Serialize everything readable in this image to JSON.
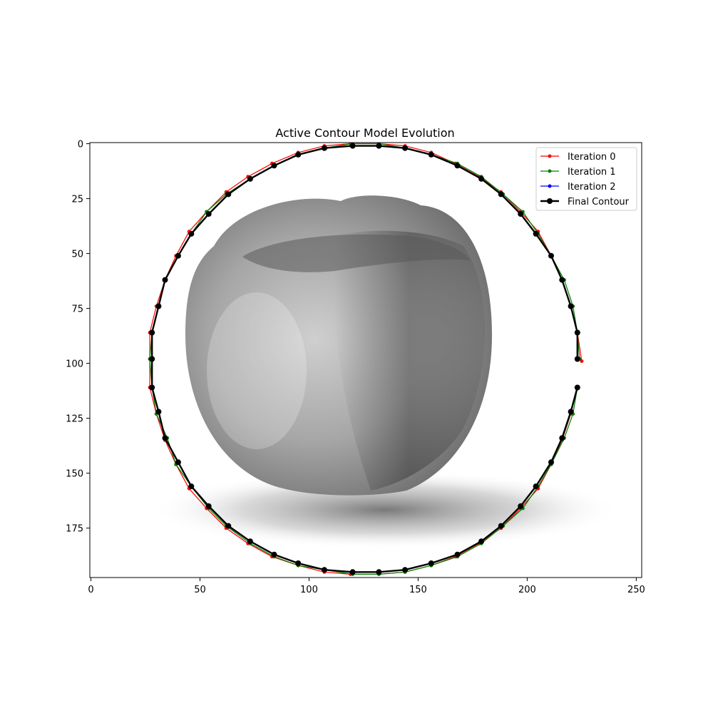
{
  "chart_data": {
    "type": "line",
    "title": "Active Contour Model Evolution",
    "xlabel": "",
    "ylabel": "",
    "xlim": [
      -0.5,
      252.5
    ],
    "ylim": [
      197.5,
      -0.5
    ],
    "y_inverted": true,
    "x_ticks": [
      0,
      50,
      100,
      150,
      200,
      250
    ],
    "y_ticks": [
      0,
      25,
      50,
      75,
      100,
      125,
      150,
      175
    ],
    "grid": false,
    "legend_position": "top-right",
    "background_image": "grayscale apple photo",
    "series": [
      {
        "name": "Iteration 0",
        "color": "#ff0000",
        "marker_size": 2.5,
        "line_width": 1.2,
        "points": [
          [
            225,
            99
          ],
          [
            223,
            86
          ],
          [
            220,
            74
          ],
          [
            216,
            62
          ],
          [
            211,
            51
          ],
          [
            205,
            40
          ],
          [
            197,
            31
          ],
          [
            188,
            22
          ],
          [
            178,
            15
          ],
          [
            167,
            9
          ],
          [
            156,
            4
          ],
          [
            144,
            1
          ],
          [
            132,
            0
          ],
          [
            119,
            0
          ],
          [
            107,
            1
          ],
          [
            95,
            4
          ],
          [
            83,
            9
          ],
          [
            72,
            15
          ],
          [
            62,
            22
          ],
          [
            53,
            31
          ],
          [
            45,
            40
          ],
          [
            39,
            51
          ],
          [
            34,
            62
          ],
          [
            30,
            74
          ],
          [
            27,
            86
          ],
          [
            27,
            98
          ],
          [
            27,
            111
          ],
          [
            30,
            123
          ],
          [
            34,
            135
          ],
          [
            39,
            146
          ],
          [
            45,
            157
          ],
          [
            53,
            166
          ],
          [
            62,
            175
          ],
          [
            72,
            182
          ],
          [
            83,
            188
          ],
          [
            95,
            192
          ],
          [
            107,
            195
          ],
          [
            119,
            196
          ],
          [
            132,
            196
          ],
          [
            144,
            195
          ],
          [
            156,
            192
          ],
          [
            167,
            188
          ],
          [
            178,
            182
          ],
          [
            188,
            175
          ],
          [
            197,
            166
          ],
          [
            205,
            157
          ],
          [
            211,
            146
          ],
          [
            216,
            135
          ],
          [
            220,
            123
          ],
          [
            223,
            111
          ]
        ]
      },
      {
        "name": "Iteration 1",
        "color": "#008000",
        "marker_size": 2.5,
        "line_width": 1.2,
        "points": [
          [
            224,
            98
          ],
          [
            223,
            86
          ],
          [
            221,
            74
          ],
          [
            217,
            62
          ],
          [
            211,
            51
          ],
          [
            205,
            41
          ],
          [
            198,
            31
          ],
          [
            189,
            23
          ],
          [
            179,
            15
          ],
          [
            168,
            9
          ],
          [
            156,
            5
          ],
          [
            144,
            2
          ],
          [
            132,
            0
          ],
          [
            120,
            0
          ],
          [
            107,
            2
          ],
          [
            95,
            5
          ],
          [
            84,
            10
          ],
          [
            73,
            16
          ],
          [
            62,
            23
          ],
          [
            53,
            31
          ],
          [
            46,
            41
          ],
          [
            40,
            51
          ],
          [
            34,
            62
          ],
          [
            31,
            74
          ],
          [
            28,
            86
          ],
          [
            27,
            98
          ],
          [
            28,
            111
          ],
          [
            30,
            123
          ],
          [
            35,
            134
          ],
          [
            39,
            146
          ],
          [
            46,
            156
          ],
          [
            54,
            166
          ],
          [
            62,
            174
          ],
          [
            73,
            182
          ],
          [
            84,
            188
          ],
          [
            95,
            192
          ],
          [
            107,
            194
          ],
          [
            120,
            196
          ],
          [
            132,
            196
          ],
          [
            144,
            195
          ],
          [
            156,
            192
          ],
          [
            168,
            188
          ],
          [
            179,
            182
          ],
          [
            189,
            174
          ],
          [
            198,
            166
          ],
          [
            205,
            156
          ],
          [
            211,
            146
          ],
          [
            217,
            134
          ],
          [
            221,
            123
          ],
          [
            223,
            111
          ]
        ]
      },
      {
        "name": "Iteration 2",
        "color": "#0000ff",
        "marker_size": 2.5,
        "line_width": 1.2,
        "points": [
          [
            223,
            98
          ],
          [
            223,
            86
          ],
          [
            220,
            74
          ],
          [
            216,
            62
          ],
          [
            211,
            51
          ],
          [
            204,
            41
          ],
          [
            197,
            32
          ],
          [
            188,
            23
          ],
          [
            179,
            16
          ],
          [
            168,
            10
          ],
          [
            156,
            5
          ],
          [
            144,
            2
          ],
          [
            132,
            1
          ],
          [
            120,
            1
          ],
          [
            107,
            2
          ],
          [
            95,
            5
          ],
          [
            84,
            10
          ],
          [
            73,
            16
          ],
          [
            63,
            23
          ],
          [
            54,
            32
          ],
          [
            46,
            41
          ],
          [
            40,
            51
          ],
          [
            34,
            62
          ],
          [
            31,
            74
          ],
          [
            28,
            86
          ],
          [
            28,
            98
          ],
          [
            28,
            111
          ],
          [
            31,
            122
          ],
          [
            34,
            134
          ],
          [
            40,
            145
          ],
          [
            46,
            156
          ],
          [
            54,
            165
          ],
          [
            63,
            174
          ],
          [
            73,
            181
          ],
          [
            84,
            187
          ],
          [
            95,
            191
          ],
          [
            107,
            194
          ],
          [
            120,
            195
          ],
          [
            132,
            195
          ],
          [
            144,
            194
          ],
          [
            156,
            191
          ],
          [
            168,
            187
          ],
          [
            179,
            181
          ],
          [
            188,
            174
          ],
          [
            197,
            165
          ],
          [
            204,
            156
          ],
          [
            211,
            145
          ],
          [
            216,
            134
          ],
          [
            220,
            122
          ],
          [
            223,
            111
          ]
        ]
      },
      {
        "name": "Final Contour",
        "color": "#000000",
        "marker_size": 4,
        "line_width": 2.4,
        "points": [
          [
            223,
            98
          ],
          [
            223,
            86
          ],
          [
            220,
            74
          ],
          [
            216,
            62
          ],
          [
            211,
            51
          ],
          [
            204,
            41
          ],
          [
            197,
            32
          ],
          [
            188,
            23
          ],
          [
            179,
            16
          ],
          [
            168,
            10
          ],
          [
            156,
            5
          ],
          [
            144,
            2
          ],
          [
            132,
            1
          ],
          [
            120,
            1
          ],
          [
            107,
            2
          ],
          [
            95,
            5
          ],
          [
            84,
            10
          ],
          [
            73,
            16
          ],
          [
            63,
            23
          ],
          [
            54,
            32
          ],
          [
            46,
            41
          ],
          [
            40,
            51
          ],
          [
            34,
            62
          ],
          [
            31,
            74
          ],
          [
            28,
            86
          ],
          [
            28,
            98
          ],
          [
            28,
            111
          ],
          [
            31,
            122
          ],
          [
            34,
            134
          ],
          [
            40,
            145
          ],
          [
            46,
            156
          ],
          [
            54,
            165
          ],
          [
            63,
            174
          ],
          [
            73,
            181
          ],
          [
            84,
            187
          ],
          [
            95,
            191
          ],
          [
            107,
            194
          ],
          [
            120,
            195
          ],
          [
            132,
            195
          ],
          [
            144,
            194
          ],
          [
            156,
            191
          ],
          [
            168,
            187
          ],
          [
            179,
            181
          ],
          [
            188,
            174
          ],
          [
            197,
            165
          ],
          [
            204,
            156
          ],
          [
            211,
            145
          ],
          [
            216,
            134
          ],
          [
            220,
            122
          ],
          [
            223,
            111
          ]
        ]
      }
    ]
  }
}
